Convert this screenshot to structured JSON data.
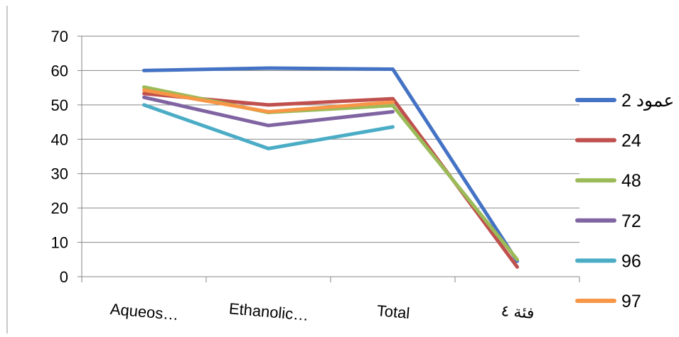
{
  "chart_data": {
    "type": "line",
    "categories": [
      "Aqueos…",
      "Ethanolic…",
      "Total",
      "فئة ٤"
    ],
    "ylim": [
      0,
      70
    ],
    "yticks": [
      0,
      10,
      20,
      30,
      40,
      50,
      60,
      70
    ],
    "grid": true,
    "legend_position": "right",
    "series": [
      {
        "name": "عمود 2",
        "color": "#4472C4",
        "values": [
          60,
          60.7,
          60.4,
          4.5
        ]
      },
      {
        "name": "24",
        "color": "#C0504D",
        "values": [
          53.3,
          50,
          51.8,
          2.8
        ]
      },
      {
        "name": "48",
        "color": "#9BBB59",
        "values": [
          55.2,
          47.8,
          49.8,
          5
        ]
      },
      {
        "name": "72",
        "color": "#8064A2",
        "values": [
          52.2,
          44,
          48,
          null
        ]
      },
      {
        "name": "96",
        "color": "#4BACC6",
        "values": [
          50,
          37.3,
          43.6,
          null
        ]
      },
      {
        "name": "97",
        "color": "#F79646",
        "values": [
          54.3,
          48,
          50.8,
          null
        ]
      }
    ]
  }
}
